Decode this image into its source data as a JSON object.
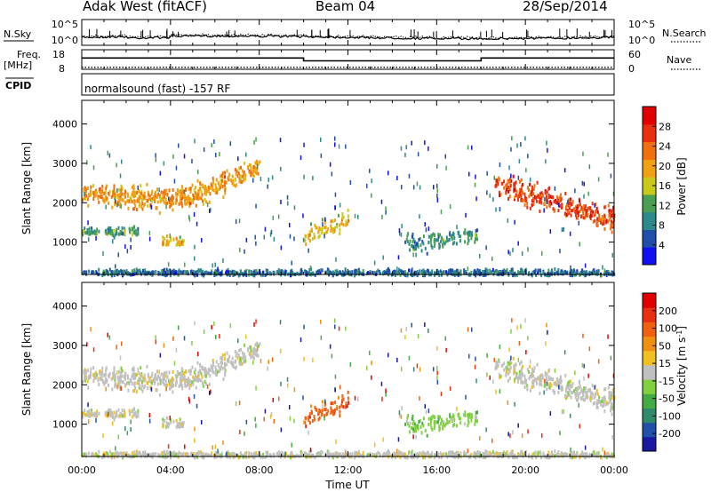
{
  "header": {
    "radar": "Adak West (fitACF)",
    "beam": "Beam 04",
    "date": "28/Sep/2014"
  },
  "chart_data": [
    {
      "type": "line",
      "panel": "noise",
      "left_label": "N.Sky",
      "right_label": "N.Search",
      "left_ticks": [
        "10^5",
        "10^0"
      ],
      "right_ticks": [
        "10^5",
        "10^0"
      ],
      "series": [
        {
          "name": "N.Sky",
          "style": "solid"
        },
        {
          "name": "N.Search",
          "style": "dotted"
        }
      ]
    },
    {
      "type": "line",
      "panel": "frequency",
      "left_label": "Freq.",
      "left_unit": "[MHz]",
      "right_label": "Nave",
      "left_ticks": [
        18,
        8
      ],
      "right_ticks": [
        60,
        0
      ],
      "freq_steps": [
        {
          "from": 0,
          "to": 10,
          "value": 14.5
        },
        {
          "from": 10,
          "to": 18,
          "value": 12.6
        },
        {
          "from": 18,
          "to": 24,
          "value": 14.5
        }
      ],
      "nave_value": 2
    },
    {
      "type": "table",
      "panel": "cpid",
      "label": "CPID",
      "text": "normalsound (fast) -157 RF"
    },
    {
      "type": "heatmap",
      "panel": "power",
      "ylabel": "Slant Range [km]",
      "yticks": [
        1000,
        2000,
        3000,
        4000
      ],
      "ylim": [
        180,
        4600
      ],
      "colorbar_label": "Power [dB]",
      "colorbar_ticks": [
        4,
        8,
        12,
        16,
        20,
        24,
        28
      ],
      "colors": [
        "#1010f0",
        "#1f4fa8",
        "#2e8a8a",
        "#4aa050",
        "#c9c919",
        "#f0a010",
        "#f07010",
        "#e83010",
        "#e00000"
      ]
    },
    {
      "type": "heatmap",
      "panel": "velocity",
      "ylabel": "Slant Range [km]",
      "yticks": [
        1000,
        2000,
        3000,
        4000
      ],
      "ylim": [
        180,
        4600
      ],
      "colorbar_label": "Velocity [m s^-1]",
      "colorbar_ticks": [
        200,
        100,
        50,
        15,
        -15,
        -50,
        -100,
        -200
      ],
      "colors": [
        "#1818a0",
        "#2050a8",
        "#2e8a6a",
        "#44aa44",
        "#80d040",
        "#c0c0c0",
        "#f0c020",
        "#f09010",
        "#f06010",
        "#e83010",
        "#e00000"
      ]
    }
  ],
  "time_axis": {
    "label": "Time UT",
    "ticks": [
      "00:00",
      "04:00",
      "08:00",
      "12:00",
      "16:00",
      "20:00",
      "00:00"
    ],
    "range_hours": [
      0,
      24
    ]
  }
}
